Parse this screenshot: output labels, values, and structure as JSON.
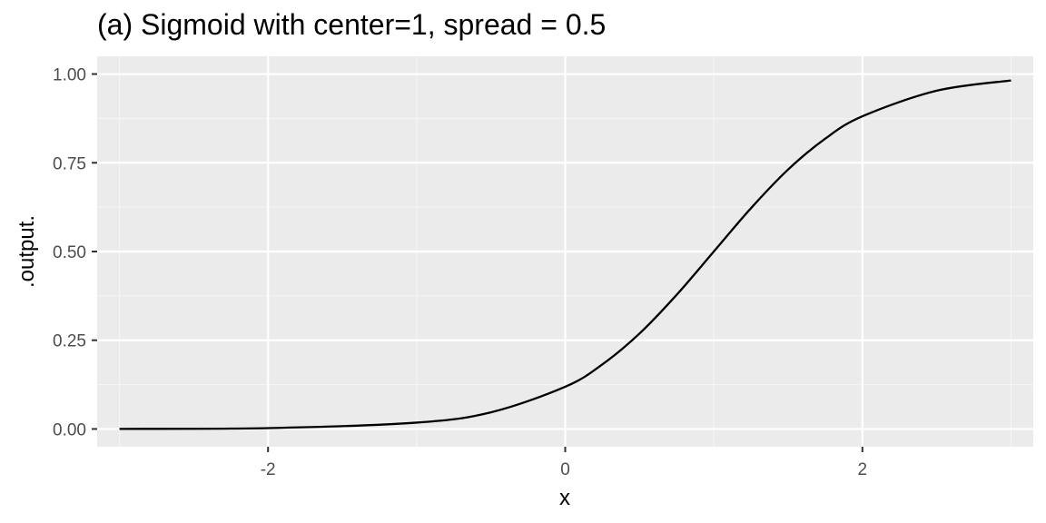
{
  "chart_data": {
    "type": "line",
    "title": "(a) Sigmoid with center=1, spread = 0.5",
    "xlabel": "x",
    "ylabel": ".output.",
    "xlim": [
      -3.15,
      3.15
    ],
    "ylim": [
      -0.05,
      1.05
    ],
    "x_ticks": [
      -2,
      0,
      2
    ],
    "x_tick_labels": [
      "-2",
      "0",
      "2"
    ],
    "y_ticks": [
      0,
      0.25,
      0.5,
      0.75,
      1
    ],
    "y_tick_labels": [
      "0.00",
      "0.25",
      "0.50",
      "0.75",
      "1.00"
    ],
    "x_minor": [
      -3,
      -1,
      1,
      3
    ],
    "y_minor": [
      0.125,
      0.375,
      0.625,
      0.875
    ],
    "grid": true,
    "legend": "none",
    "series": [
      {
        "x": [
          -3,
          -2,
          -1,
          -0.5,
          0,
          0.25,
          0.5,
          0.75,
          1,
          1.25,
          1.5,
          1.75,
          2,
          2.5,
          3
        ],
        "values": [
          0.0003,
          0.0025,
          0.018,
          0.047,
          0.119,
          0.182,
          0.269,
          0.378,
          0.5,
          0.622,
          0.731,
          0.818,
          0.881,
          0.953,
          0.982
        ],
        "color": "#000000"
      }
    ]
  },
  "colors": {
    "panel_background": "#ebebeb",
    "grid_major": "#ffffff",
    "grid_minor": "#f5f5f5",
    "line": "#000000"
  }
}
